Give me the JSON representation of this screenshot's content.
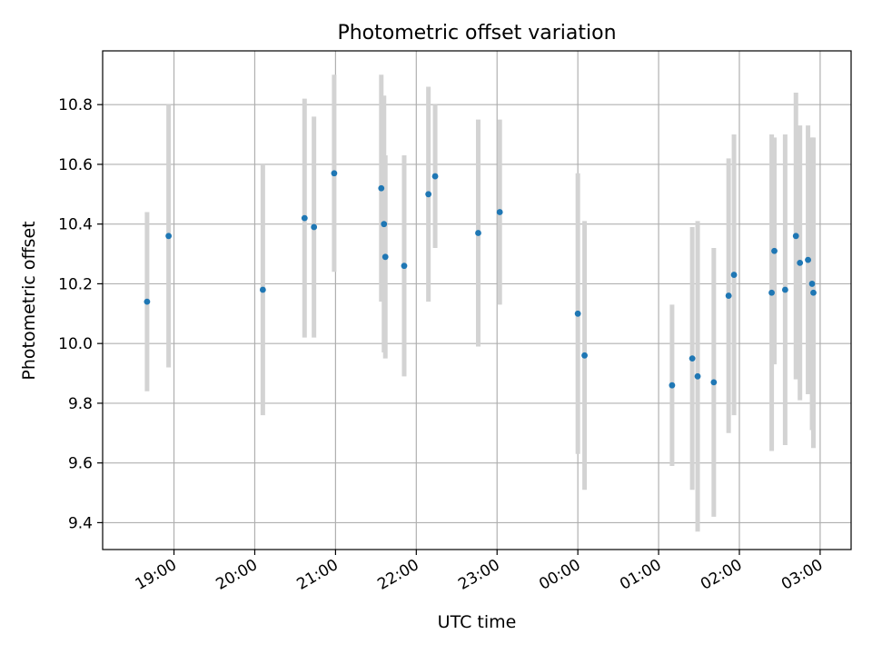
{
  "chart_data": {
    "type": "scatter",
    "title": "Photometric offset variation",
    "xlabel": "UTC time",
    "ylabel": "Photometric offset",
    "x_ticks": [
      "19:00",
      "20:00",
      "21:00",
      "22:00",
      "23:00",
      "00:00",
      "01:00",
      "02:00",
      "03:00"
    ],
    "y_ticks": [
      "9.4",
      "9.6",
      "9.8",
      "10.0",
      "10.2",
      "10.4",
      "10.6",
      "10.8"
    ],
    "xlim": [
      "18:07",
      "03:23"
    ],
    "ylim": [
      9.31,
      10.98
    ],
    "grid": true,
    "colors": {
      "points": "#1f77b4",
      "errorbars": "#d3d3d3",
      "grid": "#b0b0b0"
    },
    "points": [
      {
        "x": "18:40",
        "y": 10.14,
        "err": 0.3
      },
      {
        "x": "18:56",
        "y": 10.36,
        "err": 0.44
      },
      {
        "x": "20:06",
        "y": 10.18,
        "err": 0.42
      },
      {
        "x": "20:37",
        "y": 10.42,
        "err": 0.4
      },
      {
        "x": "20:44",
        "y": 10.39,
        "err": 0.37
      },
      {
        "x": "20:59",
        "y": 10.57,
        "err": 0.33
      },
      {
        "x": "21:34",
        "y": 10.52,
        "err": 0.38
      },
      {
        "x": "21:36",
        "y": 10.4,
        "err": 0.43
      },
      {
        "x": "21:37",
        "y": 10.29,
        "err": 0.34
      },
      {
        "x": "21:51",
        "y": 10.26,
        "err": 0.37
      },
      {
        "x": "22:09",
        "y": 10.5,
        "err": 0.36
      },
      {
        "x": "22:14",
        "y": 10.56,
        "err": 0.24
      },
      {
        "x": "22:46",
        "y": 10.37,
        "err": 0.38
      },
      {
        "x": "23:02",
        "y": 10.44,
        "err": 0.31
      },
      {
        "x": "00:00",
        "y": 10.1,
        "err": 0.47
      },
      {
        "x": "00:05",
        "y": 9.96,
        "err": 0.45
      },
      {
        "x": "01:10",
        "y": 9.86,
        "err": 0.27
      },
      {
        "x": "01:25",
        "y": 9.95,
        "err": 0.44
      },
      {
        "x": "01:29",
        "y": 9.89,
        "err": 0.52
      },
      {
        "x": "01:41",
        "y": 9.87,
        "err": 0.45
      },
      {
        "x": "01:52",
        "y": 10.16,
        "err": 0.46
      },
      {
        "x": "01:56",
        "y": 10.23,
        "err": 0.47
      },
      {
        "x": "02:24",
        "y": 10.17,
        "err": 0.53
      },
      {
        "x": "02:26",
        "y": 10.31,
        "err": 0.38
      },
      {
        "x": "02:34",
        "y": 10.18,
        "err": 0.52
      },
      {
        "x": "02:42",
        "y": 10.36,
        "err": 0.48
      },
      {
        "x": "02:45",
        "y": 10.27,
        "err": 0.46
      },
      {
        "x": "02:51",
        "y": 10.28,
        "err": 0.45
      },
      {
        "x": "02:54",
        "y": 10.2,
        "err": 0.49
      },
      {
        "x": "02:55",
        "y": 10.17,
        "err": 0.52
      }
    ]
  }
}
